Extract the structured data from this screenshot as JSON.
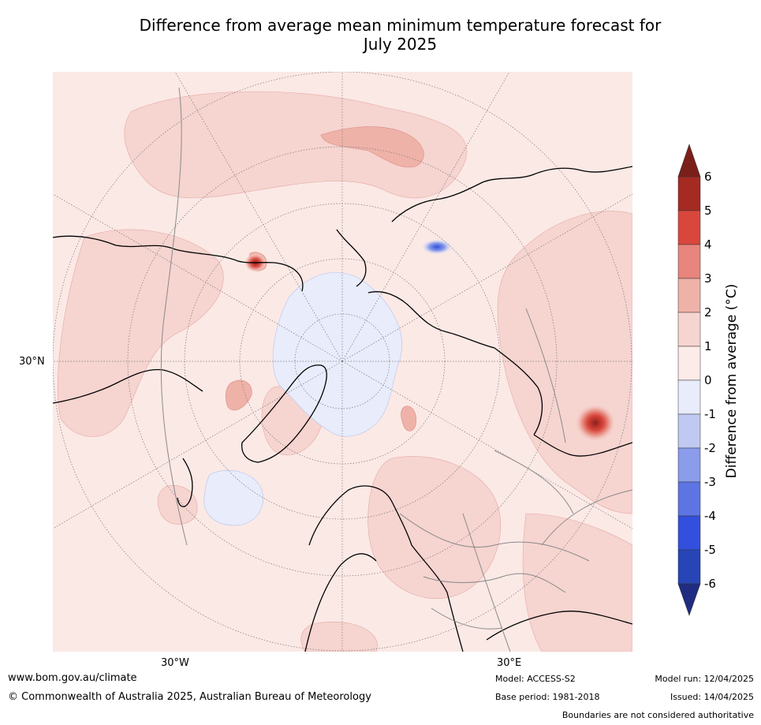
{
  "title_line1": "Difference from average mean minimum temperature forecast for",
  "title_line2": "July 2025",
  "map": {
    "projection": "north polar stereographic",
    "lat_labels": [
      "30°N"
    ],
    "lon_labels": [
      "30°W",
      "30°E"
    ],
    "background_color": "#fbe9e6"
  },
  "colorbar": {
    "title": "Difference from average (°C)",
    "ticks": [
      "6",
      "5",
      "4",
      "3",
      "2",
      "1",
      "0",
      "-1",
      "-2",
      "-3",
      "-4",
      "-5",
      "-6"
    ],
    "colors": [
      "#a52a22",
      "#d9473c",
      "#e8857c",
      "#efb2a9",
      "#f6d4d0",
      "#fcebe8",
      "#e8ecfb",
      "#c0c9f1",
      "#8a9cea",
      "#5d74e3",
      "#3250dd",
      "#2845b7"
    ],
    "over_color": "#7b1f1a",
    "under_color": "#1f2c81"
  },
  "footer": {
    "url": "www.bom.gov.au/climate",
    "copyright": "© Commonwealth of Australia 2025, Australian Bureau of Meteorology",
    "model": "Model: ACCESS-S2",
    "base_period": "Base period: 1981-2018",
    "model_run": "Model run: 12/04/2025",
    "issued": "Issued: 14/04/2025",
    "boundaries": "Boundaries are not considered authoritative"
  }
}
